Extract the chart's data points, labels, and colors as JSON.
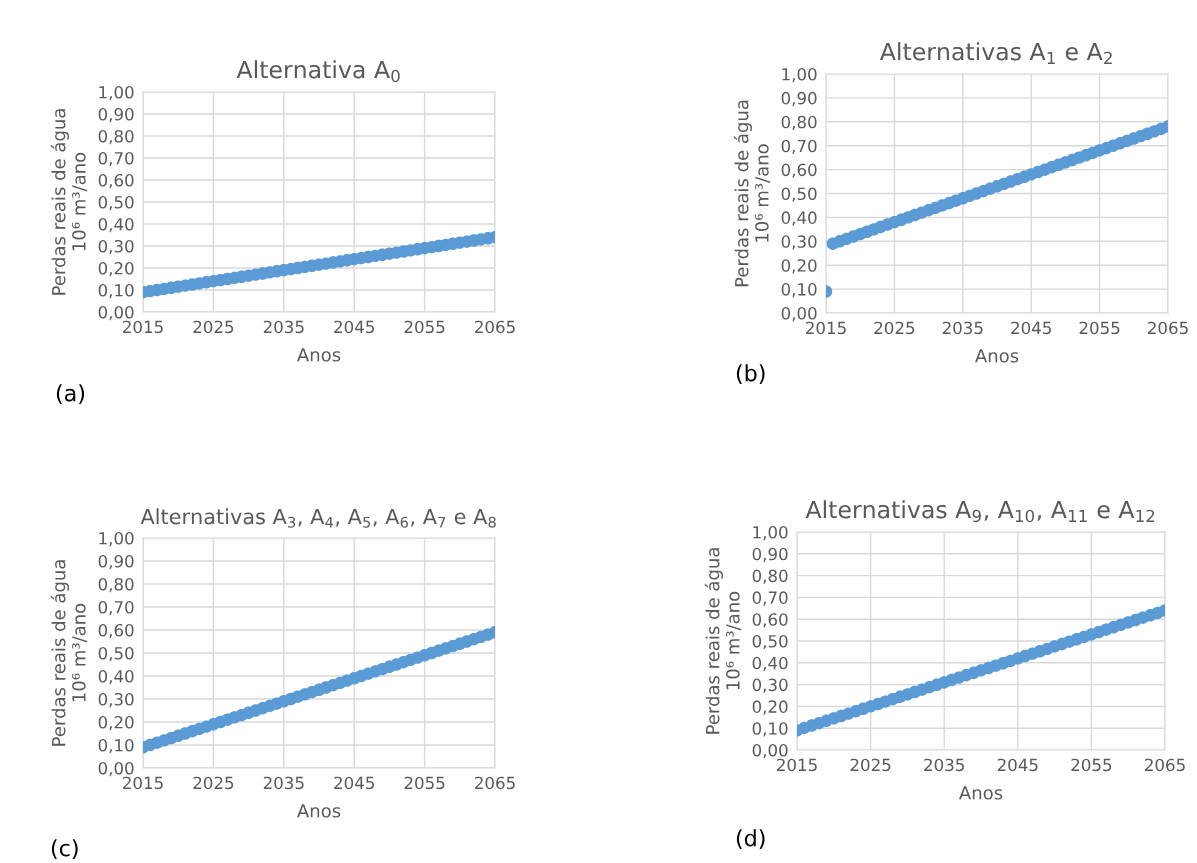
{
  "chart_data": [
    {
      "type": "scatter",
      "title": "Alternativa A$_{0}$",
      "xlabel": "Anos",
      "ylabel": "Perdas reais de água\n10⁶ m³/ano",
      "annotations": [
        "(a)"
      ],
      "marker": "circle",
      "grid": true,
      "x": [
        2015,
        2016,
        2017,
        2018,
        2019,
        2020,
        2021,
        2022,
        2023,
        2024,
        2025,
        2026,
        2027,
        2028,
        2029,
        2030,
        2031,
        2032,
        2033,
        2034,
        2035,
        2036,
        2037,
        2038,
        2039,
        2040,
        2041,
        2042,
        2043,
        2044,
        2045,
        2046,
        2047,
        2048,
        2049,
        2050,
        2051,
        2052,
        2053,
        2054,
        2055,
        2056,
        2057,
        2058,
        2059,
        2060,
        2061,
        2062,
        2063,
        2064,
        2065
      ],
      "series": [
        {
          "color": "#5b9bd5",
          "values": [
            0.09,
            0.095,
            0.1,
            0.105,
            0.11,
            0.115,
            0.12,
            0.125,
            0.13,
            0.135,
            0.14,
            0.145,
            0.15,
            0.155,
            0.16,
            0.165,
            0.17,
            0.175,
            0.18,
            0.185,
            0.19,
            0.195,
            0.2,
            0.205,
            0.21,
            0.215,
            0.22,
            0.225,
            0.23,
            0.235,
            0.24,
            0.245,
            0.25,
            0.255,
            0.26,
            0.265,
            0.27,
            0.275,
            0.28,
            0.285,
            0.29,
            0.295,
            0.3,
            0.305,
            0.31,
            0.315,
            0.32,
            0.325,
            0.33,
            0.335,
            0.34
          ]
        }
      ],
      "xlim": [
        2015,
        2065
      ],
      "xticks": [
        2015,
        2025,
        2035,
        2045,
        2055,
        2065
      ],
      "ylim": [
        0,
        1
      ],
      "yticks": [
        {
          "value": 0,
          "label": "0,00"
        },
        {
          "value": 0.1,
          "label": "0,10"
        },
        {
          "value": 0.2,
          "label": "0,20"
        },
        {
          "value": 0.3,
          "label": "0,30"
        },
        {
          "value": 0.4,
          "label": "0,40"
        },
        {
          "value": 0.5,
          "label": "0,50"
        },
        {
          "value": 0.6,
          "label": "0,60"
        },
        {
          "value": 0.7,
          "label": "0,70"
        },
        {
          "value": 0.8,
          "label": "0,80"
        },
        {
          "value": 0.9,
          "label": "0,90"
        },
        {
          "value": 1,
          "label": "1,00"
        }
      ]
    },
    {
      "type": "scatter",
      "title": "Alternativas A$_{1}$ e A$_{2}$",
      "xlabel": "Anos",
      "ylabel": "Perdas reais de água\n10⁶ m³/ano",
      "annotations": [
        "(b)"
      ],
      "marker": "circle",
      "grid": true,
      "x": [
        2015,
        2016,
        2017,
        2018,
        2019,
        2020,
        2021,
        2022,
        2023,
        2024,
        2025,
        2026,
        2027,
        2028,
        2029,
        2030,
        2031,
        2032,
        2033,
        2034,
        2035,
        2036,
        2037,
        2038,
        2039,
        2040,
        2041,
        2042,
        2043,
        2044,
        2045,
        2046,
        2047,
        2048,
        2049,
        2050,
        2051,
        2052,
        2053,
        2054,
        2055,
        2056,
        2057,
        2058,
        2059,
        2060,
        2061,
        2062,
        2063,
        2064,
        2065
      ],
      "series": [
        {
          "color": "#5b9bd5",
          "values": [
            0.09,
            0.29,
            0.3,
            0.31,
            0.32,
            0.33,
            0.34,
            0.35,
            0.36,
            0.37,
            0.38,
            0.39,
            0.4,
            0.41,
            0.42,
            0.43,
            0.44,
            0.45,
            0.46,
            0.47,
            0.48,
            0.49,
            0.5,
            0.51,
            0.52,
            0.53,
            0.54,
            0.55,
            0.56,
            0.57,
            0.58,
            0.59,
            0.6,
            0.61,
            0.62,
            0.63,
            0.64,
            0.65,
            0.66,
            0.67,
            0.68,
            0.69,
            0.7,
            0.71,
            0.72,
            0.73,
            0.74,
            0.75,
            0.76,
            0.77,
            0.78
          ]
        }
      ],
      "xlim": [
        2015,
        2065
      ],
      "xticks": [
        2015,
        2025,
        2035,
        2045,
        2055,
        2065
      ],
      "ylim": [
        0,
        1
      ],
      "yticks": [
        {
          "value": 0,
          "label": "0,00"
        },
        {
          "value": 0.1,
          "label": "0,10"
        },
        {
          "value": 0.2,
          "label": "0,20"
        },
        {
          "value": 0.3,
          "label": "0,30"
        },
        {
          "value": 0.4,
          "label": "0,40"
        },
        {
          "value": 0.5,
          "label": "0,50"
        },
        {
          "value": 0.6,
          "label": "0,60"
        },
        {
          "value": 0.7,
          "label": "0,70"
        },
        {
          "value": 0.8,
          "label": "0,80"
        },
        {
          "value": 0.9,
          "label": "0,90"
        },
        {
          "value": 1,
          "label": "1,00"
        }
      ]
    },
    {
      "type": "scatter",
      "title": "Alternativas A$_{3}$, A$_{4}$, A$_{5}$, A$_{6}$, A$_{7}$ e A$_{8}$",
      "xlabel": "Anos",
      "ylabel": "Perdas reais de água\n10⁶ m³/ano",
      "annotations": [
        "(c)"
      ],
      "marker": "circle",
      "grid": true,
      "x": [
        2015,
        2016,
        2017,
        2018,
        2019,
        2020,
        2021,
        2022,
        2023,
        2024,
        2025,
        2026,
        2027,
        2028,
        2029,
        2030,
        2031,
        2032,
        2033,
        2034,
        2035,
        2036,
        2037,
        2038,
        2039,
        2040,
        2041,
        2042,
        2043,
        2044,
        2045,
        2046,
        2047,
        2048,
        2049,
        2050,
        2051,
        2052,
        2053,
        2054,
        2055,
        2056,
        2057,
        2058,
        2059,
        2060,
        2061,
        2062,
        2063,
        2064,
        2065
      ],
      "series": [
        {
          "color": "#5b9bd5",
          "values": [
            0.09,
            0.1,
            0.11,
            0.12,
            0.13,
            0.14,
            0.15,
            0.16,
            0.17,
            0.18,
            0.19,
            0.2,
            0.21,
            0.22,
            0.23,
            0.24,
            0.25,
            0.26,
            0.27,
            0.28,
            0.29,
            0.3,
            0.31,
            0.32,
            0.33,
            0.34,
            0.35,
            0.36,
            0.37,
            0.38,
            0.39,
            0.4,
            0.41,
            0.42,
            0.43,
            0.44,
            0.45,
            0.46,
            0.47,
            0.48,
            0.49,
            0.5,
            0.51,
            0.52,
            0.53,
            0.54,
            0.55,
            0.56,
            0.57,
            0.58,
            0.59
          ]
        }
      ],
      "xlim": [
        2015,
        2065
      ],
      "xticks": [
        2015,
        2025,
        2035,
        2045,
        2055,
        2065
      ],
      "ylim": [
        0,
        1
      ],
      "yticks": [
        {
          "value": 0,
          "label": "0,00"
        },
        {
          "value": 0.1,
          "label": "0,10"
        },
        {
          "value": 0.2,
          "label": "0,20"
        },
        {
          "value": 0.3,
          "label": "0,30"
        },
        {
          "value": 0.4,
          "label": "0,40"
        },
        {
          "value": 0.5,
          "label": "0,50"
        },
        {
          "value": 0.6,
          "label": "0,60"
        },
        {
          "value": 0.7,
          "label": "0,70"
        },
        {
          "value": 0.8,
          "label": "0,80"
        },
        {
          "value": 0.9,
          "label": "0,90"
        },
        {
          "value": 1,
          "label": "1,00"
        }
      ]
    },
    {
      "type": "scatter",
      "title": "Alternativas A$_{9}$, A$_{10}$, A$_{11}$ e A$_{12}$",
      "xlabel": "Anos",
      "ylabel": "Perdas reais de água\n10⁶ m³/ano",
      "annotations": [
        "(d)"
      ],
      "marker": "circle",
      "grid": true,
      "x": [
        2015,
        2016,
        2017,
        2018,
        2019,
        2020,
        2021,
        2022,
        2023,
        2024,
        2025,
        2026,
        2027,
        2028,
        2029,
        2030,
        2031,
        2032,
        2033,
        2034,
        2035,
        2036,
        2037,
        2038,
        2039,
        2040,
        2041,
        2042,
        2043,
        2044,
        2045,
        2046,
        2047,
        2048,
        2049,
        2050,
        2051,
        2052,
        2053,
        2054,
        2055,
        2056,
        2057,
        2058,
        2059,
        2060,
        2061,
        2062,
        2063,
        2064,
        2065
      ],
      "series": [
        {
          "color": "#5b9bd5",
          "values": [
            0.09,
            0.101,
            0.112,
            0.123,
            0.134,
            0.145,
            0.156,
            0.167,
            0.178,
            0.189,
            0.2,
            0.211,
            0.222,
            0.233,
            0.244,
            0.255,
            0.266,
            0.277,
            0.288,
            0.299,
            0.31,
            0.321,
            0.332,
            0.343,
            0.354,
            0.365,
            0.376,
            0.387,
            0.398,
            0.409,
            0.42,
            0.431,
            0.442,
            0.453,
            0.464,
            0.475,
            0.486,
            0.497,
            0.508,
            0.519,
            0.53,
            0.541,
            0.552,
            0.563,
            0.574,
            0.585,
            0.596,
            0.607,
            0.618,
            0.629,
            0.64
          ]
        }
      ],
      "xlim": [
        2015,
        2065
      ],
      "xticks": [
        2015,
        2025,
        2035,
        2045,
        2055,
        2065
      ],
      "ylim": [
        0,
        1
      ],
      "yticks": [
        {
          "value": 0,
          "label": "0,00"
        },
        {
          "value": 0.1,
          "label": "0,10"
        },
        {
          "value": 0.2,
          "label": "0,20"
        },
        {
          "value": 0.3,
          "label": "0,30"
        },
        {
          "value": 0.4,
          "label": "0,40"
        },
        {
          "value": 0.5,
          "label": "0,50"
        },
        {
          "value": 0.6,
          "label": "0,60"
        },
        {
          "value": 0.7,
          "label": "0,70"
        },
        {
          "value": 0.8,
          "label": "0,80"
        },
        {
          "value": 0.9,
          "label": "0,90"
        },
        {
          "value": 1,
          "label": "1,00"
        }
      ]
    }
  ]
}
